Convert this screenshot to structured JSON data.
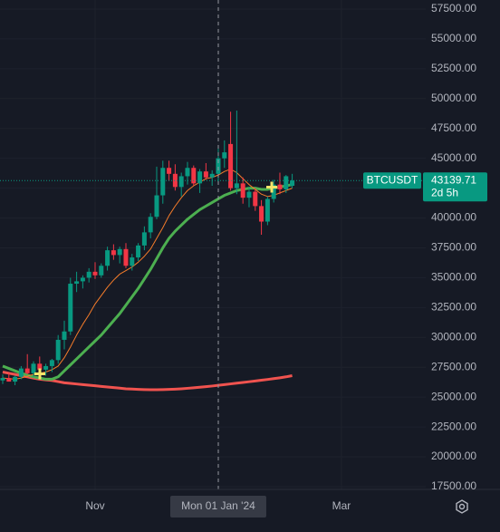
{
  "chart_data": {
    "type": "candlestick",
    "symbol": "BTCUSDT",
    "countdown": "2d 5h",
    "up_color": "#089981",
    "down_color": "#f23645",
    "xlim": [
      -0.44,
      68.68
    ],
    "xticks": [
      {
        "value": 15,
        "label": "Nov"
      },
      {
        "value": 35,
        "label": "Mon 01 Jan '24"
      },
      {
        "value": 55,
        "label": "Mar"
      }
    ],
    "ylim": [
      17272,
      58259
    ],
    "yticks": [
      {
        "value": 17500,
        "label": "17500.00"
      },
      {
        "value": 20000,
        "label": "20000.00"
      },
      {
        "value": 22500,
        "label": "22500.00"
      },
      {
        "value": 25000,
        "label": "25000.00"
      },
      {
        "value": 27500,
        "label": "27500.00"
      },
      {
        "value": 30000,
        "label": "30000.00"
      },
      {
        "value": 32500,
        "label": "32500.00"
      },
      {
        "value": 35000,
        "label": "35000.00"
      },
      {
        "value": 37500,
        "label": "37500.00"
      },
      {
        "value": 40000,
        "label": "40000.00"
      },
      {
        "value": 42500,
        "label": "42500.00"
      },
      {
        "value": 45000,
        "label": "45000.00"
      },
      {
        "value": 47500,
        "label": "47500.00"
      },
      {
        "value": 50000,
        "label": "50000.00"
      },
      {
        "value": 52500,
        "label": "52500.00"
      },
      {
        "value": 55000,
        "label": "55000.00"
      },
      {
        "value": 57500,
        "label": "57500.00"
      }
    ],
    "open": [
      26400,
      26600,
      26300,
      26700,
      27400,
      27000,
      27800,
      27300,
      27600,
      28100,
      29800,
      30500,
      34500,
      34700,
      35000,
      35500,
      35200,
      36000,
      37300,
      36900,
      37400,
      36000,
      36700,
      37700,
      38800,
      40100,
      41900,
      44200,
      43700,
      42600,
      43500,
      44200,
      42900,
      43900,
      43400,
      43700,
      45000,
      46200,
      42500,
      42900,
      41700,
      42200,
      41000,
      39700,
      41600,
      42800,
      42400,
      42700
    ],
    "high": [
      26900,
      27000,
      26800,
      27600,
      28600,
      28000,
      28400,
      27800,
      28200,
      30200,
      31400,
      35000,
      35500,
      35200,
      35800,
      36300,
      36200,
      37600,
      37800,
      37600,
      37900,
      37000,
      37900,
      39300,
      40400,
      44300,
      44800,
      44800,
      44500,
      43800,
      44700,
      44400,
      44100,
      44600,
      44000,
      46000,
      46500,
      48900,
      49000,
      43400,
      42600,
      42500,
      41500,
      41800,
      43200,
      43800,
      43600,
      43700
    ],
    "low": [
      26100,
      26300,
      26000,
      26500,
      26900,
      26700,
      27000,
      26800,
      27100,
      27800,
      29000,
      30200,
      33800,
      34100,
      34600,
      34900,
      35000,
      35600,
      36500,
      36200,
      35800,
      35600,
      36400,
      37300,
      38300,
      39900,
      41200,
      43100,
      42300,
      41800,
      42800,
      42700,
      42100,
      43200,
      42700,
      42900,
      44200,
      42300,
      42000,
      41200,
      40900,
      40600,
      38600,
      39400,
      41300,
      42000,
      42100,
      42500
    ],
    "close": [
      26600,
      26300,
      26700,
      27400,
      27000,
      27800,
      27300,
      27600,
      28100,
      29800,
      30500,
      34500,
      34700,
      35000,
      35500,
      35200,
      36000,
      37300,
      36900,
      37400,
      36000,
      36700,
      37700,
      38800,
      40100,
      41900,
      44200,
      43700,
      42600,
      43500,
      44200,
      42900,
      43900,
      43400,
      43700,
      45000,
      45500,
      42500,
      42900,
      41700,
      42200,
      41000,
      39700,
      41600,
      42800,
      42400,
      43500,
      43139.71
    ],
    "lines": [
      {
        "color": "#f0534f",
        "values": [
          27100,
          27000,
          26900,
          26800,
          26700,
          26600,
          26500,
          26450,
          26400,
          26300,
          26200,
          26150,
          26100,
          26050,
          26000,
          25950,
          25900,
          25850,
          25800,
          25750,
          25700,
          25680,
          25650,
          25630,
          25620,
          25620,
          25630,
          25650,
          25670,
          25700,
          25740,
          25780,
          25830,
          25880,
          25930,
          25990,
          26050,
          26110,
          26170,
          26230,
          26290,
          26350,
          26420,
          26480,
          26550,
          26620,
          26700,
          26800
        ]
      },
      {
        "color": "#4caf50",
        "values": [
          27600,
          27400,
          27200,
          27000,
          26850,
          26700,
          26600,
          26500,
          26500,
          26700,
          27200,
          27700,
          28200,
          28700,
          29200,
          29700,
          30200,
          30800,
          31400,
          32000,
          32700,
          33400,
          34100,
          34900,
          35700,
          36600,
          37500,
          38300,
          38900,
          39400,
          39900,
          40300,
          40700,
          41000,
          41300,
          41600,
          41900,
          42100,
          42300,
          42400,
          42500,
          42500,
          42400,
          42400,
          42500,
          42600,
          42700,
          42800
        ]
      },
      {
        "color": "#f57c2a",
        "values": [
          26600,
          26550,
          26500,
          26600,
          26750,
          26900,
          27000,
          27100,
          27300,
          27600,
          28300,
          29200,
          30200,
          31100,
          31900,
          32800,
          33500,
          34200,
          34800,
          35300,
          35600,
          35900,
          36300,
          36800,
          37400,
          38300,
          39200,
          40200,
          41000,
          41700,
          42300,
          42700,
          43000,
          43300,
          43400,
          43600,
          43900,
          44100,
          43800,
          43300,
          42800,
          42400,
          42000,
          41800,
          41900,
          42100,
          42300,
          42500
        ]
      }
    ]
  }
}
